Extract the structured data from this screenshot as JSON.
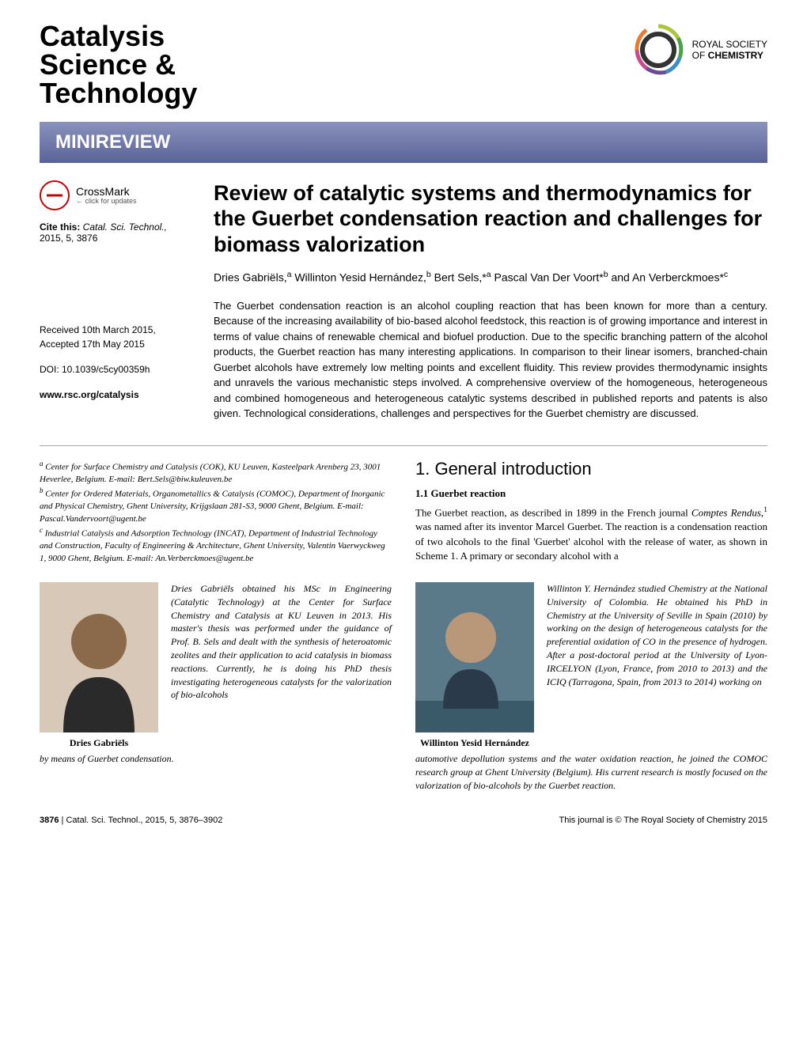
{
  "journal_name_line1": "Catalysis",
  "journal_name_line2": "Science &",
  "journal_name_line3": "Technology",
  "publisher_text_line1": "ROYAL SOCIETY",
  "publisher_text_line2_prefix": "OF",
  "publisher_text_line2_bold": "CHEMISTRY",
  "banner": "MINIREVIEW",
  "crossmark": "CrossMark",
  "crossmark_sub": "← click for updates",
  "cite_prefix": "Cite this: ",
  "cite_journal": "Catal. Sci. Technol.,",
  "cite_rest": " 2015, 5, 3876",
  "received": "Received 10th March 2015,",
  "accepted": "Accepted 17th May 2015",
  "doi": "DOI: 10.1039/c5cy00359h",
  "site": "www.rsc.org/catalysis",
  "title": "Review of catalytic systems and thermodynamics for the Guerbet condensation reaction and challenges for biomass valorization",
  "authors_html": "Dries Gabriëls,<sup>a</sup> Willinton Yesid Hernández,<sup>b</sup> Bert Sels,*<sup>a</sup> Pascal Van Der Voort*<sup>b</sup> and An Verberckmoes*<sup>c</sup>",
  "abstract": "The Guerbet condensation reaction is an alcohol coupling reaction that has been known for more than a century. Because of the increasing availability of bio-based alcohol feedstock, this reaction is of growing importance and interest in terms of value chains of renewable chemical and biofuel production. Due to the specific branching pattern of the alcohol products, the Guerbet reaction has many interesting applications. In comparison to their linear isomers, branched-chain Guerbet alcohols have extremely low melting points and excellent fluidity. This review provides thermodynamic insights and unravels the various mechanistic steps involved. A comprehensive overview of the homogeneous, heterogeneous and combined homogeneous and heterogeneous catalytic systems described in published reports and patents is also given. Technological considerations, challenges and perspectives for the Guerbet chemistry are discussed.",
  "aff_a": "Center for Surface Chemistry and Catalysis (COK), KU Leuven, Kasteelpark Arenberg 23, 3001 Heverlee, Belgium. E-mail: Bert.Sels@biw.kuleuven.be",
  "aff_b": "Center for Ordered Materials, Organometallics & Catalysis (COMOC), Department of Inorganic and Physical Chemistry, Ghent University, Krijgslaan 281-S3, 9000 Ghent, Belgium. E-mail: Pascal.Vandervoort@ugent.be",
  "aff_c": "Industrial Catalysis and Adsorption Technology (INCAT), Department of Industrial Technology and Construction, Faculty of Engineering & Architecture, Ghent University, Valentin Vaerwyckweg 1, 9000 Ghent, Belgium. E-mail: An.Verberckmoes@ugent.be",
  "intro_heading": "1. General introduction",
  "intro_subheading": "1.1 Guerbet reaction",
  "intro_body_html": "The Guerbet reaction, as described in 1899 in the French journal <i>Comptes Rendus</i>,<sup>1</sup> was named after its inventor Marcel Guerbet. The reaction is a condensation reaction of two alcohols to the final 'Guerbet' alcohol with the release of water, as shown in Scheme 1. A primary or secondary alcohol with a",
  "bio1_name": "Dries Gabriëls",
  "bio1_text": "Dries Gabriëls obtained his MSc in Engineering (Catalytic Technology) at the Center for Surface Chemistry and Catalysis at KU Leuven in 2013. His master's thesis was performed under the guidance of Prof. B. Sels and dealt with the synthesis of heteroatomic zeolites and their application to acid catalysis in biomass reactions. Currently, he is doing his PhD thesis investigating heterogeneous catalysts for the valorization of bio-alcohols",
  "bio1_extra": "by means of Guerbet condensation.",
  "bio2_name": "Willinton Yesid Hernández",
  "bio2_text": "Willinton Y. Hernández studied Chemistry at the National University of Colombia. He obtained his PhD in Chemistry at the University of Seville in Spain (2010) by working on the design of heterogeneous catalysts for the preferential oxidation of CO in the presence of hydrogen. After a post-doctoral period at the University of Lyon-IRCELYON (Lyon, France, from 2010 to 2013) and the ICIQ (Tarragona, Spain, from 2013 to 2014) working on",
  "bio2_extra": "automotive depollution systems and the water oxidation reaction, he joined the COMOC research group at Ghent University (Belgium). His current research is mostly focused on the valorization of bio-alcohols by the Guerbet reaction.",
  "footer_left_page": "3876",
  "footer_left_rest": " | Catal. Sci. Technol., 2015, 5, 3876–3902",
  "footer_right": "This journal is © The Royal Society of Chemistry 2015",
  "colors": {
    "banner_bg_top": "#8a92bc",
    "banner_bg_bottom": "#5a6398",
    "crossmark_red": "#c00000",
    "logo_colors": [
      "#a8c73a",
      "#4aa147",
      "#3b8ec4",
      "#6a4c93",
      "#c94b8c",
      "#e87b2f"
    ]
  }
}
